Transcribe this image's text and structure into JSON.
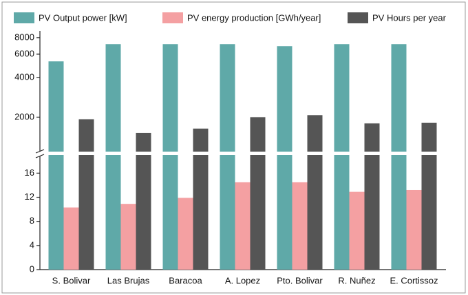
{
  "chart_data": {
    "type": "bar",
    "categories": [
      "S. Bolivar",
      "Las Brujas",
      "Baracoa",
      "A. Lopez",
      "Pto. Bolivar",
      "R. Nuñez",
      "E. Cortissoz"
    ],
    "series": [
      {
        "name": "PV Output power [kW]",
        "color": "#5fa9a8",
        "values": [
          5300,
          7150,
          7150,
          7150,
          6900,
          7150,
          7150
        ]
      },
      {
        "name": "PV energy production [GWh/year]",
        "color": "#f4a0a2",
        "axis": "y2",
        "values": [
          10.3,
          10.9,
          11.9,
          14.5,
          14.5,
          12.9,
          13.2
        ]
      },
      {
        "name": "PV Hours per year",
        "color": "#555555",
        "values": [
          1930,
          1520,
          1640,
          2000,
          2070,
          1800,
          1820
        ]
      }
    ],
    "ylim": [
      1100,
      9000
    ],
    "yticks": [
      2000,
      4000,
      6000,
      8000
    ],
    "log_scale": true,
    "y2lim": [
      0,
      19
    ],
    "y2ticks": [
      0,
      4,
      8,
      12,
      16
    ],
    "legend": "top"
  }
}
